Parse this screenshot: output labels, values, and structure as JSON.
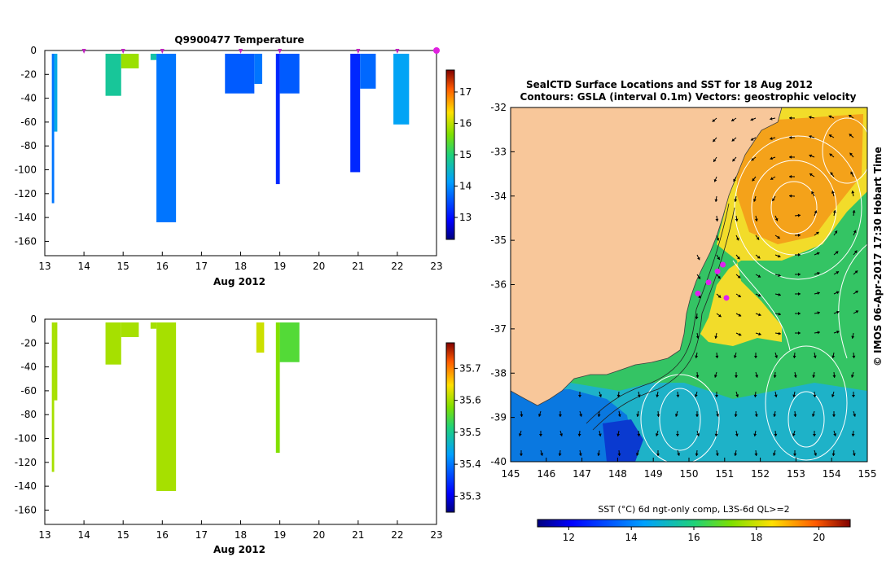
{
  "chart_data": [
    {
      "type": "heatmap",
      "title": "Q9900477  Temperature",
      "xlabel": "Aug 2012",
      "ylabel": "",
      "xlim": [
        13,
        23
      ],
      "ylim": [
        -172,
        0
      ],
      "xticks": [
        "13",
        "14",
        "15",
        "16",
        "17",
        "18",
        "19",
        "20",
        "21",
        "22",
        "23"
      ],
      "yticks": [
        "0",
        "-20",
        "-40",
        "-60",
        "-80",
        "-100",
        "-120",
        "-140",
        "-160"
      ],
      "colorbar": {
        "min": 12.3,
        "max": 17.7,
        "ticks": [
          "13",
          "14",
          "15",
          "16",
          "17"
        ]
      },
      "markers": [
        14.0,
        15.0,
        16.0,
        18.0,
        19.0,
        21.0,
        22.0,
        23.0
      ],
      "profiles": [
        {
          "x0": 13.18,
          "x1": 13.24,
          "depth": 128,
          "value": 13.8
        },
        {
          "x0": 13.24,
          "x1": 13.32,
          "depth": 68,
          "value": 14.3
        },
        {
          "x0": 14.55,
          "x1": 14.95,
          "depth": 38,
          "value": 14.8
        },
        {
          "x0": 14.95,
          "x1": 15.4,
          "depth": 15,
          "value": 15.8
        },
        {
          "x0": 15.7,
          "x1": 15.85,
          "depth": 8,
          "value": 14.7
        },
        {
          "x0": 15.85,
          "x1": 16.35,
          "depth": 144,
          "value": 13.8
        },
        {
          "x0": 17.6,
          "x1": 18.35,
          "depth": 36,
          "value": 13.6
        },
        {
          "x0": 18.35,
          "x1": 18.55,
          "depth": 28,
          "value": 13.8
        },
        {
          "x0": 18.9,
          "x1": 19.0,
          "depth": 112,
          "value": 13.2
        },
        {
          "x0": 19.0,
          "x1": 19.5,
          "depth": 36,
          "value": 13.6
        },
        {
          "x0": 20.8,
          "x1": 21.05,
          "depth": 102,
          "value": 13.2
        },
        {
          "x0": 21.05,
          "x1": 21.45,
          "depth": 32,
          "value": 13.7
        },
        {
          "x0": 21.9,
          "x1": 22.3,
          "depth": 62,
          "value": 14.2
        }
      ]
    },
    {
      "type": "heatmap",
      "title": "",
      "xlabel": "Aug 2012",
      "ylabel": "",
      "xlim": [
        13,
        23
      ],
      "ylim": [
        -172,
        0
      ],
      "xticks": [
        "13",
        "14",
        "15",
        "16",
        "17",
        "18",
        "19",
        "20",
        "21",
        "22",
        "23"
      ],
      "yticks": [
        "0",
        "-20",
        "-40",
        "-60",
        "-80",
        "-100",
        "-120",
        "-140",
        "-160"
      ],
      "colorbar": {
        "min": 35.25,
        "max": 35.78,
        "ticks": [
          "35.3",
          "35.4",
          "35.5",
          "35.6",
          "35.7"
        ]
      },
      "profiles": [
        {
          "x0": 13.18,
          "x1": 13.24,
          "depth": 128,
          "value": 35.6
        },
        {
          "x0": 13.24,
          "x1": 13.32,
          "depth": 68,
          "value": 35.6
        },
        {
          "x0": 14.55,
          "x1": 14.95,
          "depth": 38,
          "value": 35.6
        },
        {
          "x0": 14.95,
          "x1": 15.4,
          "depth": 15,
          "value": 35.6
        },
        {
          "x0": 15.7,
          "x1": 15.85,
          "depth": 8,
          "value": 35.6
        },
        {
          "x0": 15.85,
          "x1": 16.35,
          "depth": 144,
          "value": 35.6
        },
        {
          "x0": 18.4,
          "x1": 18.6,
          "depth": 28,
          "value": 35.62
        },
        {
          "x0": 18.9,
          "x1": 19.0,
          "depth": 112,
          "value": 35.58
        },
        {
          "x0": 19.0,
          "x1": 19.5,
          "depth": 36,
          "value": 35.55
        }
      ]
    },
    {
      "type": "map",
      "title": "SealCTD Surface Locations and SST for 18 Aug 2012",
      "subtitle": "Contours: GSLA (interval 0.1m) Vectors: geostrophic velocity",
      "xlim": [
        145,
        155
      ],
      "ylim": [
        -40,
        -32
      ],
      "xticks": [
        "145",
        "146",
        "147",
        "148",
        "149",
        "150",
        "151",
        "152",
        "153",
        "154",
        "155"
      ],
      "yticks": [
        "-32",
        "-33",
        "-34",
        "-35",
        "-36",
        "-37",
        "-38",
        "-39",
        "-40"
      ],
      "colorbar": {
        "label": "SST (°C) 6d ngt-only comp, L3S-6d QL>=2",
        "min": 11,
        "max": 21,
        "ticks": [
          "12",
          "14",
          "16",
          "18",
          "20"
        ]
      },
      "side_label": "© IMOS 06-Apr-2017 17:30 Hobart Time",
      "locations": [
        {
          "lon": 150.25,
          "lat": -36.2
        },
        {
          "lon": 150.55,
          "lat": -35.95
        },
        {
          "lon": 150.8,
          "lat": -35.7
        },
        {
          "lon": 150.95,
          "lat": -35.55
        },
        {
          "lon": 151.05,
          "lat": -36.3
        }
      ]
    }
  ]
}
